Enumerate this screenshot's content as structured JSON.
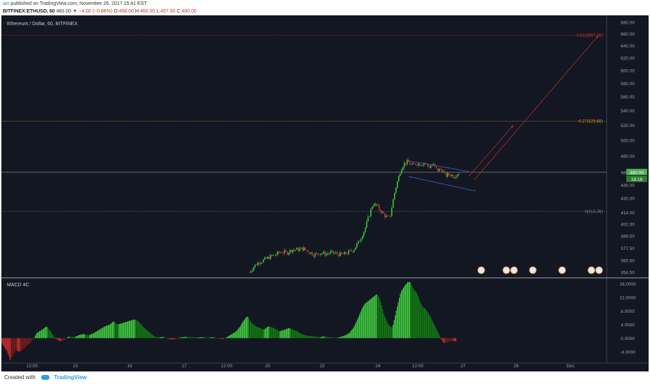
{
  "header": {
    "author": "ian",
    "published_text": "published on TradingView.com, November 26, 2017 15:41 EST",
    "symbol": "BITFINEX:ETHUSD, 60",
    "last": "460.00",
    "change": "▼ −4.00 (−0.86%)",
    "open_label": "O:",
    "open": "458.00",
    "high_label": "H:",
    "high": "460.00",
    "low_label": "L:",
    "low": "457.50",
    "close_label": "C:",
    "close": "460.00"
  },
  "footer": {
    "created_with": "Created with",
    "brand": "TradingView"
  },
  "chart_data": {
    "type": "candlestick",
    "title": "Ethereum / Dollar, 60, BITFINEX",
    "price_axis": {
      "labels": [
        "680.00",
        "660.00",
        "640.00",
        "620.00",
        "600.00",
        "580.00",
        "560.00",
        "540.00",
        "520.00",
        "500.00",
        "480.00",
        "460.00",
        "445.00",
        "430.00",
        "414.00",
        "402.00",
        "389.50",
        "377.50",
        "365.50",
        "354.50"
      ],
      "log_scale": true
    },
    "time_axis": {
      "labels": [
        "12:00",
        "13",
        "15",
        "17",
        "12:00",
        "20",
        "22",
        "24",
        "12:00",
        "27",
        "29",
        "Dec"
      ]
    },
    "current_price": {
      "label": "460.00",
      "countdown": "18:18"
    },
    "fib_levels": [
      {
        "label": "-0.618(657.36)",
        "value": 657.36,
        "color": "#c0392b"
      },
      {
        "label": "-0.27(525.68)",
        "value": 525.68,
        "color": "#e08a2e"
      },
      {
        "label": "0(415.36)",
        "value": 415.36,
        "color": "#7a7f8a"
      }
    ],
    "price_path": [
      [
        355,
        354.5
      ],
      [
        360,
        359
      ],
      [
        368,
        364
      ],
      [
        376,
        366
      ],
      [
        384,
        369
      ],
      [
        392,
        371
      ],
      [
        400,
        374
      ],
      [
        408,
        373
      ],
      [
        416,
        376
      ],
      [
        424,
        376
      ],
      [
        432,
        377
      ],
      [
        440,
        374
      ],
      [
        448,
        371
      ],
      [
        456,
        373
      ],
      [
        464,
        372
      ],
      [
        472,
        373
      ],
      [
        480,
        372
      ],
      [
        488,
        371
      ],
      [
        496,
        373
      ],
      [
        504,
        376
      ],
      [
        512,
        384
      ],
      [
        520,
        396
      ],
      [
        526,
        410
      ],
      [
        532,
        424
      ],
      [
        538,
        421
      ],
      [
        544,
        415
      ],
      [
        550,
        410
      ],
      [
        556,
        408
      ],
      [
        560,
        424
      ],
      [
        564,
        440
      ],
      [
        568,
        452
      ],
      [
        572,
        464
      ],
      [
        576,
        470
      ],
      [
        582,
        473
      ],
      [
        588,
        468
      ],
      [
        594,
        471
      ],
      [
        600,
        470
      ],
      [
        606,
        472
      ],
      [
        612,
        466
      ],
      [
        618,
        470
      ],
      [
        624,
        462
      ],
      [
        630,
        464
      ],
      [
        636,
        456
      ],
      [
        642,
        458
      ],
      [
        648,
        455
      ],
      [
        652,
        458
      ],
      [
        656,
        460
      ]
    ],
    "channel": {
      "upper": [
        [
          584,
          474
        ],
        [
          670,
          461
        ]
      ],
      "lower": [
        [
          584,
          455
        ],
        [
          680,
          438
        ]
      ],
      "color": "#3f63d6"
    },
    "projection": {
      "lines": [
        [
          [
            670,
            455
          ],
          [
            734,
            520
          ]
        ],
        [
          [
            678,
            451
          ],
          [
            856,
            657
          ]
        ]
      ],
      "color": "#d32f2f"
    },
    "indicator": {
      "name": "MACD 4C",
      "axis_labels": [
        "16.0000",
        "12.0000",
        "8.0000",
        "4.0000",
        "0.0000",
        "-4.0000"
      ],
      "histogram_profile": [
        [
          0,
          -1.5
        ],
        [
          8,
          -4
        ],
        [
          12,
          -6.5
        ],
        [
          16,
          -5
        ],
        [
          20,
          -3.5
        ],
        [
          26,
          -4
        ],
        [
          32,
          -3
        ],
        [
          40,
          -1.5
        ],
        [
          46,
          0
        ],
        [
          50,
          1.5
        ],
        [
          58,
          2.5
        ],
        [
          64,
          3.5
        ],
        [
          70,
          2
        ],
        [
          76,
          0
        ],
        [
          80,
          -0.5
        ],
        [
          84,
          -1
        ],
        [
          90,
          -0.5
        ],
        [
          96,
          0.5
        ],
        [
          104,
          0.3
        ],
        [
          112,
          1
        ],
        [
          118,
          1.2
        ],
        [
          124,
          0.8
        ],
        [
          132,
          1.5
        ],
        [
          140,
          2.5
        ],
        [
          148,
          3.5
        ],
        [
          155,
          4
        ],
        [
          160,
          5
        ],
        [
          166,
          4
        ],
        [
          174,
          4.5
        ],
        [
          182,
          5
        ],
        [
          190,
          5.5
        ],
        [
          196,
          5
        ],
        [
          202,
          3.5
        ],
        [
          210,
          2
        ],
        [
          218,
          0.6
        ],
        [
          224,
          0.2
        ],
        [
          232,
          0.4
        ],
        [
          240,
          -0.3
        ],
        [
          248,
          -0.4
        ],
        [
          256,
          0.2
        ],
        [
          264,
          0.4
        ],
        [
          272,
          0.3
        ],
        [
          280,
          0.2
        ],
        [
          288,
          0.3
        ],
        [
          296,
          0.1
        ],
        [
          304,
          0.3
        ],
        [
          312,
          -0.2
        ],
        [
          318,
          -0.3
        ],
        [
          324,
          0.5
        ],
        [
          330,
          1.2
        ],
        [
          336,
          2
        ],
        [
          342,
          3.5
        ],
        [
          346,
          5
        ],
        [
          352,
          6.5
        ],
        [
          358,
          4.5
        ],
        [
          364,
          3.5
        ],
        [
          370,
          3
        ],
        [
          376,
          2.5
        ],
        [
          382,
          3.5
        ],
        [
          390,
          3
        ],
        [
          398,
          2
        ],
        [
          406,
          2.5
        ],
        [
          412,
          3
        ],
        [
          418,
          2.5
        ],
        [
          424,
          2
        ],
        [
          430,
          1.2
        ],
        [
          436,
          0.8
        ],
        [
          442,
          0.6
        ],
        [
          448,
          0.5
        ],
        [
          456,
          0.3
        ],
        [
          462,
          0.5
        ],
        [
          468,
          0.3
        ],
        [
          474,
          0.2
        ],
        [
          480,
          0.1
        ],
        [
          486,
          0.4
        ],
        [
          492,
          0.8
        ],
        [
          498,
          1.5
        ],
        [
          504,
          3
        ],
        [
          510,
          5.5
        ],
        [
          516,
          8.5
        ],
        [
          520,
          10
        ],
        [
          526,
          11
        ],
        [
          532,
          12
        ],
        [
          538,
          13
        ],
        [
          542,
          11.5
        ],
        [
          548,
          7
        ],
        [
          554,
          4
        ],
        [
          560,
          3
        ],
        [
          566,
          8.5
        ],
        [
          572,
          13.5
        ],
        [
          578,
          15.5
        ],
        [
          582,
          16.5
        ],
        [
          586,
          16.5
        ],
        [
          590,
          14.5
        ],
        [
          596,
          13
        ],
        [
          600,
          10.5
        ],
        [
          604,
          9
        ],
        [
          608,
          8.5
        ],
        [
          614,
          6.5
        ],
        [
          620,
          4
        ],
        [
          626,
          1.5
        ],
        [
          630,
          -0.3
        ],
        [
          634,
          -1.5
        ],
        [
          640,
          -1
        ],
        [
          646,
          -0.8
        ],
        [
          652,
          -1
        ]
      ],
      "colors": {
        "up": "#3fcf3f",
        "up_weak": "#127d12",
        "down": "#d32f2f",
        "down_weak": "#7a1c1c"
      }
    },
    "grid": false,
    "legend": "none"
  }
}
